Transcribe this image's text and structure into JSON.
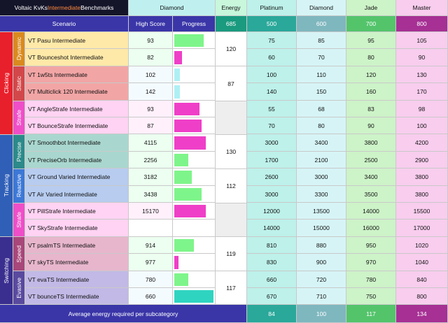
{
  "title": {
    "prefix": "Voltaic KvKs ",
    "highlight": "Intermediate",
    "suffix": " Benchmarks"
  },
  "rank_label": "Diamond",
  "energy_header": "Energy",
  "energy_total": "685",
  "headers": {
    "scenario": "Scenario",
    "high_score": "High Score",
    "progress": "Progress"
  },
  "ranks": [
    {
      "name": "Platinum",
      "threshold": "500"
    },
    {
      "name": "Diamond",
      "threshold": "600"
    },
    {
      "name": "Jade",
      "threshold": "700"
    },
    {
      "name": "Master",
      "threshold": "800"
    }
  ],
  "categories": [
    "Clicking",
    "Tracking",
    "Switching"
  ],
  "subcategories": [
    "Dynamic",
    "Static",
    "Strafe",
    "Precise",
    "Reactive",
    "Strafe",
    "Speed",
    "Evasive"
  ],
  "subcategory_energy": [
    "120",
    "87",
    "",
    "130",
    "112",
    "",
    "119",
    "117"
  ],
  "rows": [
    {
      "scenario": "VT Pasu Intermediate",
      "high_score": "93",
      "progress": 0.75,
      "thresholds": [
        "75",
        "85",
        "95",
        "105"
      ]
    },
    {
      "scenario": "VT Bounceshot Intermediate",
      "high_score": "82",
      "progress": 0.2,
      "thresholds": [
        "60",
        "70",
        "80",
        "90"
      ]
    },
    {
      "scenario": "VT 1w5ts Intermediate",
      "high_score": "102",
      "progress": 0.15,
      "thresholds": [
        "100",
        "110",
        "120",
        "130"
      ]
    },
    {
      "scenario": "VT Multiclick 120 Intermediate",
      "high_score": "142",
      "progress": 0.15,
      "thresholds": [
        "140",
        "150",
        "160",
        "170"
      ]
    },
    {
      "scenario": "VT AngleStrafe Intermediate",
      "high_score": "93",
      "progress": 0.65,
      "thresholds": [
        "55",
        "68",
        "83",
        "98"
      ]
    },
    {
      "scenario": "VT BounceStrafe Intermediate",
      "high_score": "87",
      "progress": 0.7,
      "thresholds": [
        "70",
        "80",
        "90",
        "100"
      ]
    },
    {
      "scenario": "VT Smoothbot Intermediate",
      "high_score": "4115",
      "progress": 0.8,
      "thresholds": [
        "3000",
        "3400",
        "3800",
        "4200"
      ]
    },
    {
      "scenario": "VT PreciseOrb Intermediate",
      "high_score": "2256",
      "progress": 0.35,
      "thresholds": [
        "1700",
        "2100",
        "2500",
        "2900"
      ]
    },
    {
      "scenario": "VT Ground Varied Intermediate",
      "high_score": "3182",
      "progress": 0.45,
      "thresholds": [
        "2600",
        "3000",
        "3400",
        "3800"
      ]
    },
    {
      "scenario": "VT Air Varied Intermediate",
      "high_score": "3438",
      "progress": 0.7,
      "thresholds": [
        "3000",
        "3300",
        "3500",
        "3800"
      ]
    },
    {
      "scenario": "VT PillStrafe Intermediate",
      "high_score": "15170",
      "progress": 0.8,
      "thresholds": [
        "12000",
        "13500",
        "14000",
        "15500"
      ]
    },
    {
      "scenario": "VT SkyStrafe Intermediate",
      "high_score": "",
      "progress": 0,
      "thresholds": [
        "14000",
        "15000",
        "16000",
        "17000"
      ]
    },
    {
      "scenario": "VT psalmTS Intermediate",
      "high_score": "914",
      "progress": 0.5,
      "thresholds": [
        "810",
        "880",
        "950",
        "1020"
      ]
    },
    {
      "scenario": "VT skyTS Intermediate",
      "high_score": "977",
      "progress": 0.1,
      "thresholds": [
        "830",
        "900",
        "970",
        "1040"
      ]
    },
    {
      "scenario": "VT evaTS Intermediate",
      "high_score": "780",
      "progress": 0.35,
      "thresholds": [
        "660",
        "720",
        "780",
        "840"
      ]
    },
    {
      "scenario": "VT bounceTS Intermediate",
      "high_score": "660",
      "progress": 1.0,
      "thresholds": [
        "670",
        "710",
        "750",
        "800"
      ]
    }
  ],
  "footer": {
    "label": "Average energy required per subcategory",
    "values": [
      "84",
      "100",
      "117",
      "134"
    ]
  },
  "colors": {
    "navy": "#3a36a8",
    "dark": "#15152a",
    "title_orange": "#ff8a3d",
    "diamond_light": "#bff0ef",
    "energy_head": "#c8f7dc",
    "energy_total": "#1a9a7f",
    "plat_head": "#2aa89a",
    "plat_light": "#bdf1ea",
    "diam_head": "#7fb7bf",
    "diam_light": "#d6f4f6",
    "jade_head": "#54c46b",
    "jade_light": "#cdf3c8",
    "master_head": "#e85bc6",
    "master_light": "#f8cdee",
    "bar_green": "#7ef58a",
    "bar_pink": "#ef3fc8",
    "bar_cyan": "#aef0f4",
    "bar_teal": "#2fd4c0"
  }
}
